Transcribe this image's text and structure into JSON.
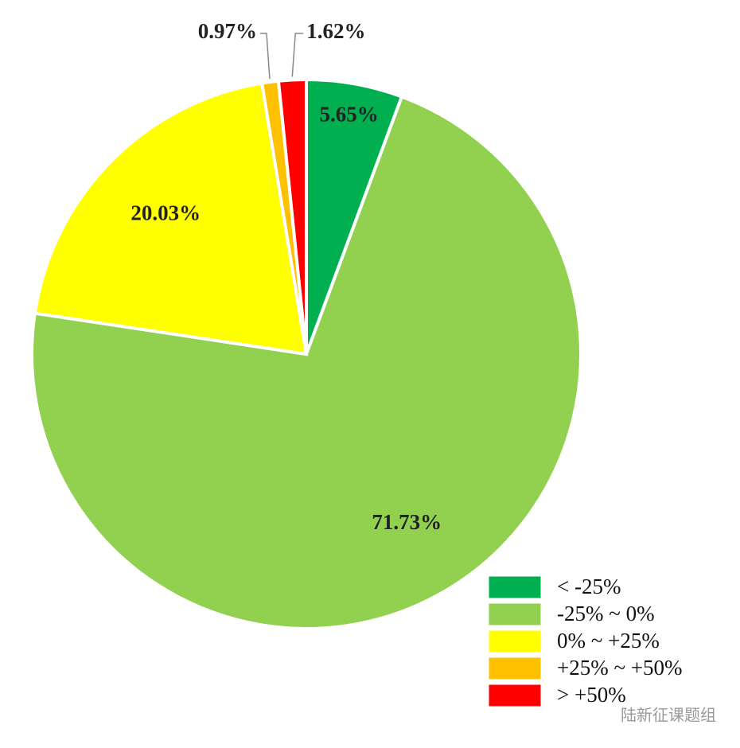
{
  "chart_data": {
    "type": "pie",
    "categories": [
      "< -25%",
      "-25% ~ 0%",
      "0% ~ +25%",
      "+25% ~ +50%",
      "> +50%"
    ],
    "values": [
      5.65,
      71.73,
      20.03,
      0.97,
      1.62
    ],
    "value_labels": [
      "5.65%",
      "71.73%",
      "20.03%",
      "0.97%",
      "1.62%"
    ],
    "colors": [
      "#00b050",
      "#92d050",
      "#ffff00",
      "#ffc000",
      "#ff0000"
    ],
    "legend": "bottom-right"
  },
  "watermark": "陆新征课题组"
}
